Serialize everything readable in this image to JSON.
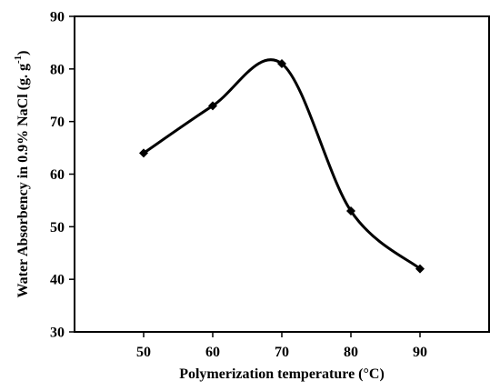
{
  "chart_data": {
    "type": "line",
    "title": "",
    "xlabel": "Polymerization temperature (°C)",
    "ylabel_main": "Water Absorbency in 0.9% NaCl (g. g",
    "ylabel_superscript": "-1",
    "ylabel_tail": ")",
    "x": [
      50,
      60,
      70,
      80,
      90
    ],
    "series": [
      {
        "values": [
          64,
          73,
          81,
          53,
          42
        ]
      }
    ],
    "xlim": [
      40,
      100
    ],
    "ylim": [
      30,
      90
    ],
    "xticks": [
      50,
      60,
      70,
      80,
      90
    ],
    "yticks": [
      30,
      40,
      50,
      60,
      70,
      80,
      90
    ],
    "xtick_labels": [
      "50",
      "60",
      "70",
      "80",
      "90"
    ],
    "ytick_labels": [
      "30",
      "40",
      "50",
      "60",
      "70",
      "80",
      "90"
    ],
    "grid": false,
    "smooth": true,
    "marker": "diamond",
    "line_color": "#000000"
  }
}
